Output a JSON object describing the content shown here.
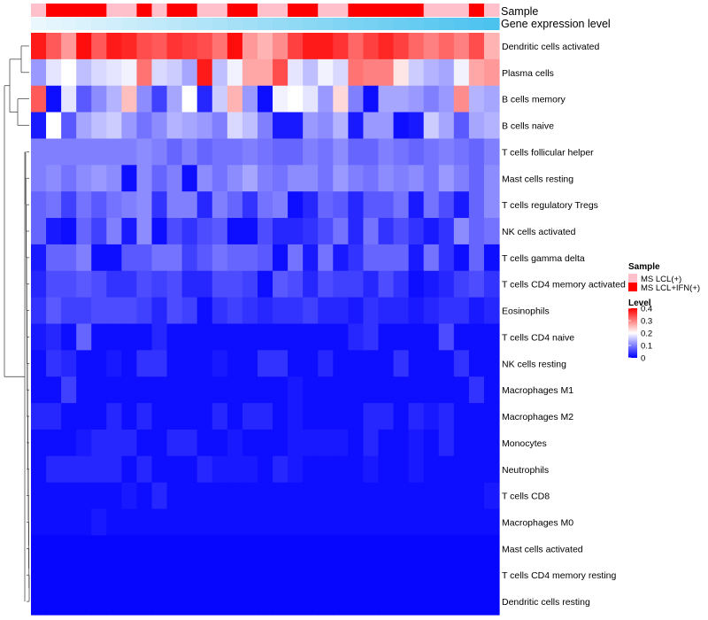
{
  "chart_data": {
    "type": "heatmap",
    "title": "",
    "annotations": [
      {
        "name": "Sample",
        "kind": "categorical"
      },
      {
        "name": "Gene expression level",
        "kind": "gradient"
      }
    ],
    "sample_groups": [
      "MS LCL(+)",
      "MS LCL+IFN(+)"
    ],
    "sample_group_colors": [
      "#ffc0cb",
      "#ff0000"
    ],
    "sample_annotation": [
      0,
      1,
      1,
      1,
      1,
      0,
      0,
      1,
      0,
      1,
      1,
      0,
      0,
      1,
      1,
      0,
      0,
      1,
      1,
      0,
      0,
      1,
      1,
      1,
      1,
      1,
      0,
      0,
      0,
      1,
      0
    ],
    "gradient_annotation_colors": [
      "#eaf7fd",
      "#4cc3ef"
    ],
    "legend": {
      "sample_title": "Sample",
      "level_title": "Level",
      "level_ticks": [
        0.4,
        0.3,
        0.2,
        0.1,
        0
      ],
      "colors": [
        "#0000ff",
        "#ffffff",
        "#ff0000"
      ],
      "range": [
        0,
        0.4
      ],
      "midpoint": 0.2
    },
    "rows": [
      "Dendritic cells activated",
      "Plasma cells",
      "B cells memory",
      "B cells naive",
      "T cells follicular helper",
      "Mast cells resting",
      "T cells regulatory  Tregs",
      "NK cells activated",
      "T cells gamma delta",
      "T cells CD4 memory activated",
      "Eosinophils",
      "T cells CD4 naive",
      "NK cells resting",
      "Macrophages M1",
      "Macrophages M2",
      "Monocytes",
      "Neutrophils",
      "T cells CD8",
      "Macrophages M0",
      "Mast cells activated",
      "T cells CD4 memory resting",
      "Dendritic cells resting"
    ],
    "values": [
      [
        0.38,
        0.33,
        0.28,
        0.39,
        0.33,
        0.38,
        0.37,
        0.34,
        0.33,
        0.36,
        0.35,
        0.34,
        0.31,
        0.39,
        0.28,
        0.26,
        0.29,
        0.35,
        0.38,
        0.38,
        0.36,
        0.32,
        0.35,
        0.37,
        0.35,
        0.32,
        0.3,
        0.32,
        0.3,
        0.34,
        0.26
      ],
      [
        0.12,
        0.18,
        0.2,
        0.15,
        0.17,
        0.18,
        0.19,
        0.31,
        0.17,
        0.16,
        0.13,
        0.38,
        0.15,
        0.19,
        0.27,
        0.27,
        0.34,
        0.18,
        0.15,
        0.19,
        0.17,
        0.31,
        0.3,
        0.3,
        0.22,
        0.16,
        0.14,
        0.13,
        0.19,
        0.27,
        0.28
      ],
      [
        0.33,
        0.01,
        0.18,
        0.07,
        0.11,
        0.14,
        0.25,
        0.11,
        0.05,
        0.13,
        0.2,
        0.03,
        0.16,
        0.26,
        0.12,
        0.01,
        0.19,
        0.2,
        0.18,
        0.12,
        0.23,
        0.1,
        0.01,
        0.13,
        0.13,
        0.12,
        0.1,
        0.12,
        0.29,
        0.14,
        0.13
      ],
      [
        0.02,
        0.2,
        0.07,
        0.13,
        0.15,
        0.16,
        0.12,
        0.09,
        0.11,
        0.14,
        0.13,
        0.12,
        0.1,
        0.17,
        0.15,
        0.1,
        0.02,
        0.02,
        0.12,
        0.11,
        0.14,
        0.02,
        0.12,
        0.12,
        0.01,
        0.02,
        0.16,
        0.13,
        0.07,
        0.13,
        0.14
      ],
      [
        0.1,
        0.1,
        0.1,
        0.1,
        0.1,
        0.1,
        0.1,
        0.11,
        0.1,
        0.08,
        0.1,
        0.08,
        0.09,
        0.09,
        0.1,
        0.09,
        0.08,
        0.08,
        0.1,
        0.09,
        0.11,
        0.08,
        0.08,
        0.1,
        0.09,
        0.08,
        0.09,
        0.1,
        0.09,
        0.08,
        0.1
      ],
      [
        0.1,
        0.11,
        0.09,
        0.11,
        0.12,
        0.11,
        0.01,
        0.11,
        0.08,
        0.1,
        0.01,
        0.11,
        0.09,
        0.11,
        0.13,
        0.1,
        0.09,
        0.11,
        0.11,
        0.09,
        0.12,
        0.1,
        0.09,
        0.11,
        0.1,
        0.11,
        0.09,
        0.12,
        0.1,
        0.08,
        0.11
      ],
      [
        0.08,
        0.09,
        0.05,
        0.09,
        0.07,
        0.09,
        0.1,
        0.11,
        0.04,
        0.1,
        0.1,
        0.03,
        0.1,
        0.08,
        0.04,
        0.09,
        0.1,
        0.01,
        0.03,
        0.08,
        0.07,
        0.03,
        0.07,
        0.07,
        0.09,
        0.02,
        0.09,
        0.06,
        0.02,
        0.08,
        0.11
      ],
      [
        0.08,
        0.02,
        0.01,
        0.08,
        0.05,
        0.1,
        0.02,
        0.11,
        0.01,
        0.06,
        0.04,
        0.06,
        0.07,
        0.01,
        0.01,
        0.06,
        0.03,
        0.03,
        0.04,
        0.06,
        0.09,
        0.03,
        0.09,
        0.04,
        0.06,
        0.04,
        0.02,
        0.04,
        0.11,
        0.08,
        0.09
      ],
      [
        0.02,
        0.08,
        0.08,
        0.1,
        0.01,
        0.01,
        0.07,
        0.07,
        0.09,
        0.09,
        0.05,
        0.07,
        0.09,
        0.08,
        0.08,
        0.07,
        0.01,
        0.09,
        0.02,
        0.09,
        0.02,
        0.04,
        0.08,
        0.08,
        0.08,
        0.02,
        0.09,
        0.04,
        0.01,
        0.08,
        0.01
      ],
      [
        0.03,
        0.06,
        0.06,
        0.07,
        0.06,
        0.04,
        0.04,
        0.06,
        0.05,
        0.06,
        0.03,
        0.03,
        0.06,
        0.06,
        0.05,
        0.01,
        0.07,
        0.06,
        0.03,
        0.06,
        0.05,
        0.05,
        0.03,
        0.06,
        0.04,
        0.01,
        0.02,
        0.03,
        0.05,
        0.06,
        0.04
      ],
      [
        0.04,
        0.07,
        0.05,
        0.05,
        0.06,
        0.06,
        0.06,
        0.05,
        0.03,
        0.06,
        0.05,
        0.01,
        0.04,
        0.05,
        0.04,
        0.03,
        0.04,
        0.04,
        0.05,
        0.03,
        0.03,
        0.02,
        0.04,
        0.03,
        0.03,
        0.02,
        0.03,
        0.04,
        0.04,
        0.02,
        0.03
      ],
      [
        0.02,
        0.03,
        0.01,
        0.08,
        0.01,
        0.01,
        0.01,
        0.01,
        0.03,
        0.01,
        0.01,
        0.01,
        0.01,
        0.01,
        0.01,
        0.01,
        0.01,
        0.01,
        0.01,
        0.01,
        0.01,
        0.03,
        0.04,
        0.01,
        0.01,
        0.01,
        0.01,
        0.06,
        0.01,
        0.01,
        0.01
      ],
      [
        0.01,
        0.04,
        0.03,
        0.01,
        0.01,
        0.02,
        0.01,
        0.04,
        0.04,
        0.01,
        0.01,
        0.01,
        0.02,
        0.01,
        0.01,
        0.04,
        0.04,
        0.01,
        0.01,
        0.03,
        0.01,
        0.01,
        0.01,
        0.01,
        0.04,
        0.01,
        0.01,
        0.01,
        0.04,
        0.01,
        0.01
      ],
      [
        0.01,
        0.01,
        0.05,
        0.01,
        0.01,
        0.01,
        0.01,
        0.01,
        0.01,
        0.01,
        0.01,
        0.01,
        0.01,
        0.01,
        0.01,
        0.01,
        0.01,
        0.02,
        0.01,
        0.01,
        0.01,
        0.01,
        0.01,
        0.01,
        0.01,
        0.01,
        0.01,
        0.01,
        0.01,
        0.04,
        0.01
      ],
      [
        0.03,
        0.03,
        0.01,
        0.01,
        0.01,
        0.03,
        0.01,
        0.03,
        0.01,
        0.01,
        0.01,
        0.01,
        0.03,
        0.01,
        0.03,
        0.03,
        0.01,
        0.02,
        0.01,
        0.01,
        0.01,
        0.01,
        0.03,
        0.03,
        0.01,
        0.03,
        0.02,
        0.03,
        0.01,
        0.01,
        0.01
      ],
      [
        0.01,
        0.01,
        0.01,
        0.02,
        0.03,
        0.03,
        0.03,
        0.01,
        0.01,
        0.03,
        0.03,
        0.01,
        0.01,
        0.02,
        0.01,
        0.01,
        0.01,
        0.02,
        0.02,
        0.02,
        0.02,
        0.01,
        0.03,
        0.01,
        0.01,
        0.02,
        0.01,
        0.03,
        0.01,
        0.01,
        0.01
      ],
      [
        0.01,
        0.03,
        0.03,
        0.03,
        0.03,
        0.03,
        0.01,
        0.03,
        0.01,
        0.01,
        0.01,
        0.03,
        0.02,
        0.02,
        0.02,
        0.01,
        0.03,
        0.02,
        0.01,
        0.01,
        0.01,
        0.01,
        0.02,
        0.01,
        0.01,
        0.02,
        0.01,
        0.01,
        0.01,
        0.01,
        0.01
      ],
      [
        0.01,
        0.01,
        0.01,
        0.01,
        0.01,
        0.01,
        0.02,
        0.01,
        0.03,
        0.01,
        0.01,
        0.01,
        0.01,
        0.01,
        0.01,
        0.01,
        0.01,
        0.01,
        0.01,
        0.01,
        0.01,
        0.01,
        0.01,
        0.01,
        0.01,
        0.01,
        0.01,
        0.01,
        0.01,
        0.01,
        0.02
      ],
      [
        0.01,
        0.01,
        0.01,
        0.01,
        0.02,
        0.01,
        0.01,
        0.01,
        0.01,
        0.01,
        0.01,
        0.01,
        0.01,
        0.01,
        0.01,
        0.01,
        0.01,
        0.01,
        0.01,
        0.01,
        0.01,
        0.01,
        0.01,
        0.01,
        0.01,
        0.01,
        0.01,
        0.01,
        0.01,
        0.01,
        0.01
      ],
      [
        0.005,
        0.005,
        0.005,
        0.005,
        0.005,
        0.005,
        0.005,
        0.005,
        0.005,
        0.005,
        0.005,
        0.005,
        0.005,
        0.005,
        0.005,
        0.005,
        0.005,
        0.005,
        0.005,
        0.005,
        0.005,
        0.005,
        0.005,
        0.005,
        0.005,
        0.005,
        0.005,
        0.005,
        0.005,
        0.005,
        0.005
      ],
      [
        0.005,
        0.005,
        0.005,
        0.005,
        0.005,
        0.005,
        0.005,
        0.005,
        0.005,
        0.005,
        0.005,
        0.005,
        0.005,
        0.005,
        0.005,
        0.005,
        0.005,
        0.005,
        0.005,
        0.005,
        0.005,
        0.005,
        0.005,
        0.005,
        0.005,
        0.005,
        0.005,
        0.005,
        0.005,
        0.005,
        0.005
      ],
      [
        0.005,
        0.005,
        0.005,
        0.005,
        0.005,
        0.005,
        0.005,
        0.005,
        0.005,
        0.005,
        0.005,
        0.005,
        0.005,
        0.005,
        0.005,
        0.005,
        0.005,
        0.005,
        0.005,
        0.005,
        0.005,
        0.005,
        0.005,
        0.005,
        0.005,
        0.005,
        0.005,
        0.005,
        0.005,
        0.005,
        0.005
      ]
    ]
  }
}
